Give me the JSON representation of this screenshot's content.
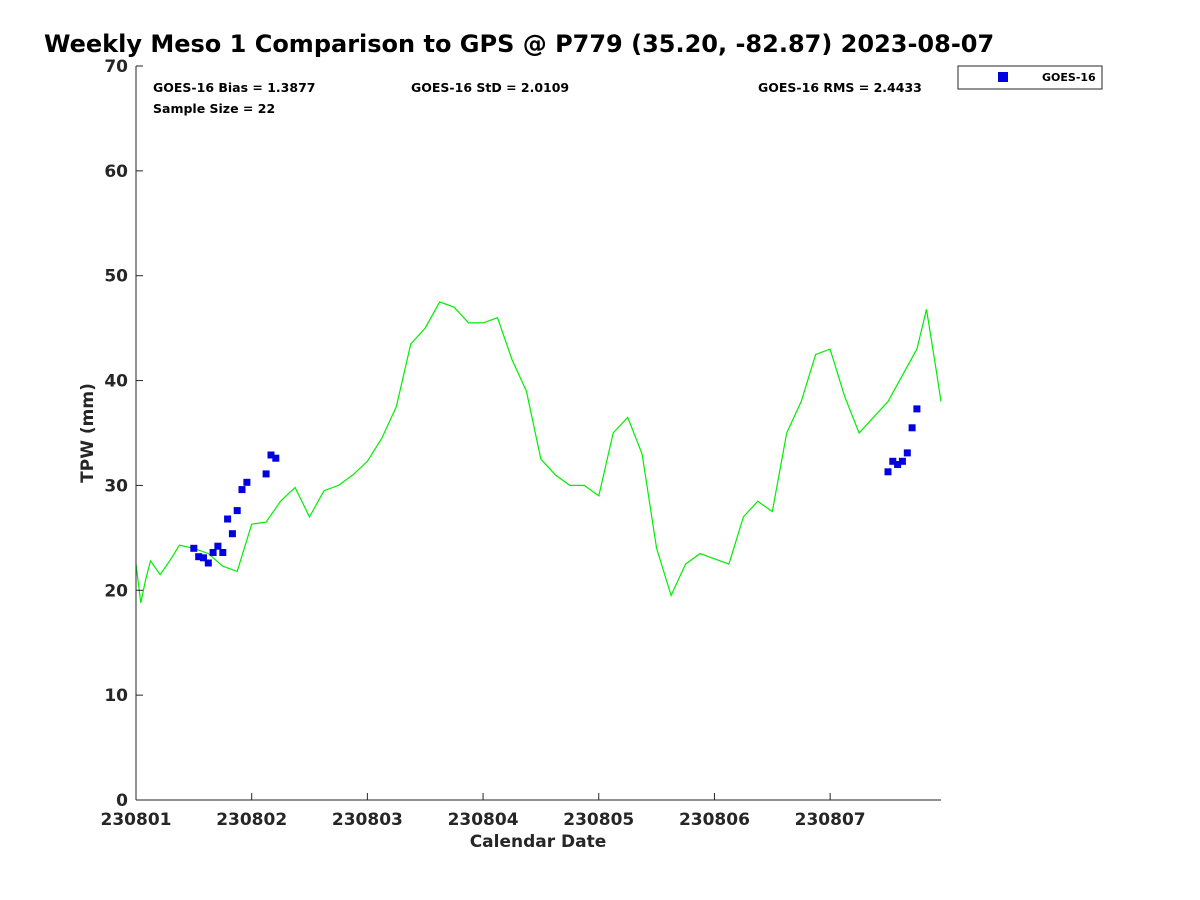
{
  "chart_data": {
    "type": "line",
    "title": "Weekly Meso 1 Comparison to GPS @ P779 (35.20, -82.87) 2023-08-07",
    "xlabel": "Calendar Date",
    "ylabel": "TPW (mm)",
    "xlim": [
      "2023-08-01 00:00",
      "2023-08-07 23:00"
    ],
    "ylim": [
      0,
      70
    ],
    "x_ticks": [
      "2023-08-01",
      "2023-08-02",
      "2023-08-03",
      "2023-08-04",
      "2023-08-05",
      "2023-08-06",
      "2023-08-07"
    ],
    "x_tick_labels": [
      "230801",
      "230802",
      "230803",
      "230804",
      "230805",
      "230806",
      "230807"
    ],
    "y_ticks": [
      0,
      10,
      20,
      30,
      40,
      50,
      60,
      70
    ],
    "grid": false,
    "legend_position": "top-right, outside plot",
    "stats": {
      "bias": "GOES-16 Bias = 1.3877",
      "std": "GOES-16 StD = 2.0109",
      "rms": "GOES-16 RMS = 2.4433",
      "sample": "Sample Size = 22"
    },
    "series": [
      {
        "type": "line",
        "color": "#00ee00",
        "x": [
          "2023-08-01 00:00",
          "2023-08-01 01:00",
          "2023-08-01 02:00",
          "2023-08-01 03:00",
          "2023-08-01 05:00",
          "2023-08-01 07:00",
          "2023-08-01 09:00",
          "2023-08-01 12:00",
          "2023-08-01 15:00",
          "2023-08-01 18:00",
          "2023-08-01 21:00",
          "2023-08-02 00:00",
          "2023-08-02 03:00",
          "2023-08-02 06:00",
          "2023-08-02 09:00",
          "2023-08-02 12:00",
          "2023-08-02 15:00",
          "2023-08-02 18:00",
          "2023-08-02 21:00",
          "2023-08-03 00:00",
          "2023-08-03 03:00",
          "2023-08-03 06:00",
          "2023-08-03 09:00",
          "2023-08-03 12:00",
          "2023-08-03 15:00",
          "2023-08-03 18:00",
          "2023-08-03 21:00",
          "2023-08-04 00:00",
          "2023-08-04 03:00",
          "2023-08-04 06:00",
          "2023-08-04 09:00",
          "2023-08-04 12:00",
          "2023-08-04 15:00",
          "2023-08-04 18:00",
          "2023-08-04 21:00",
          "2023-08-05 00:00",
          "2023-08-05 03:00",
          "2023-08-05 06:00",
          "2023-08-05 09:00",
          "2023-08-05 12:00",
          "2023-08-05 15:00",
          "2023-08-05 18:00",
          "2023-08-05 21:00",
          "2023-08-06 00:00",
          "2023-08-06 03:00",
          "2023-08-06 06:00",
          "2023-08-06 09:00",
          "2023-08-06 12:00",
          "2023-08-06 15:00",
          "2023-08-06 18:00",
          "2023-08-06 21:00",
          "2023-08-07 00:00",
          "2023-08-07 03:00",
          "2023-08-07 06:00",
          "2023-08-07 09:00",
          "2023-08-07 12:00",
          "2023-08-07 15:00",
          "2023-08-07 18:00",
          "2023-08-07 20:00",
          "2023-08-07 22:00",
          "2023-08-07 23:00"
        ],
        "y": [
          22.5,
          18.8,
          21.0,
          22.8,
          21.5,
          22.8,
          24.3,
          24.0,
          23.5,
          22.3,
          21.8,
          26.3,
          26.5,
          28.5,
          29.8,
          27.0,
          29.5,
          30.0,
          31.0,
          32.3,
          34.5,
          37.5,
          43.5,
          45.0,
          47.5,
          47.0,
          45.5,
          45.5,
          46.0,
          42.0,
          39.0,
          32.5,
          31.0,
          30.0,
          30.0,
          29.0,
          35.0,
          36.5,
          33.0,
          24.0,
          19.5,
          22.5,
          23.5,
          23.0,
          22.5,
          27.0,
          28.5,
          27.5,
          35.0,
          38.0,
          42.5,
          43.0,
          38.5,
          35.0,
          36.5,
          38.0,
          40.5,
          43.0,
          46.8,
          41.0,
          38.0
        ]
      },
      {
        "type": "scatter",
        "name": "GOES-16",
        "color": "#0000e0",
        "marker": "square",
        "x": [
          "2023-08-01 12:00",
          "2023-08-01 13:00",
          "2023-08-01 14:00",
          "2023-08-01 15:00",
          "2023-08-01 16:00",
          "2023-08-01 17:00",
          "2023-08-01 18:00",
          "2023-08-01 19:00",
          "2023-08-01 20:00",
          "2023-08-01 21:00",
          "2023-08-01 22:00",
          "2023-08-01 23:00",
          "2023-08-02 03:00",
          "2023-08-02 04:00",
          "2023-08-02 05:00",
          "2023-08-07 12:00",
          "2023-08-07 13:00",
          "2023-08-07 14:00",
          "2023-08-07 15:00",
          "2023-08-07 16:00",
          "2023-08-07 17:00",
          "2023-08-07 18:00"
        ],
        "y": [
          24.0,
          23.2,
          23.1,
          22.6,
          23.6,
          24.2,
          23.6,
          26.8,
          25.4,
          27.6,
          29.6,
          30.3,
          31.1,
          32.9,
          32.6,
          31.3,
          32.3,
          32.0,
          32.3,
          33.1,
          35.5,
          37.3
        ]
      }
    ]
  }
}
